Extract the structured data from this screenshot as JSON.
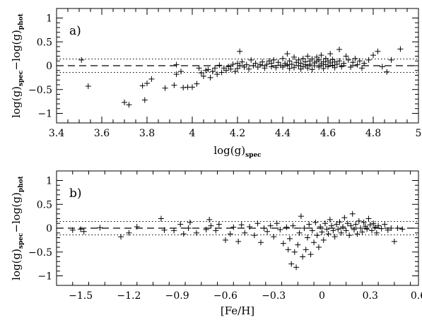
{
  "chart_data": [
    {
      "type": "scatter",
      "panel_label": "a)",
      "xlabel": "log(g)",
      "xlabel_sub": "spec",
      "ylabel_parts": [
        "log(g)",
        "spec",
        "−log(g)",
        "phot"
      ],
      "xlim": [
        3.4,
        5.0
      ],
      "ylim": [
        -1.2,
        1.2
      ],
      "xticks": [
        "3.4",
        "3.6",
        "3.8",
        "4",
        "4.2",
        "4.4",
        "4.6",
        "4.8",
        "5"
      ],
      "yticks": [
        "−1",
        "−0.5",
        "0",
        "0.5",
        "1"
      ],
      "reference_lines": {
        "zero": 0,
        "band": [
          -0.14,
          0.14
        ]
      },
      "points": [
        [
          3.51,
          0.12
        ],
        [
          3.54,
          -0.43
        ],
        [
          3.7,
          -0.77
        ],
        [
          3.72,
          -0.82
        ],
        [
          3.78,
          -0.42
        ],
        [
          3.79,
          -0.72
        ],
        [
          3.8,
          -0.37
        ],
        [
          3.82,
          -0.28
        ],
        [
          3.88,
          -0.47
        ],
        [
          3.92,
          -0.41
        ],
        [
          3.93,
          0.02
        ],
        [
          3.93,
          -0.18
        ],
        [
          3.95,
          -0.12
        ],
        [
          3.96,
          -0.46
        ],
        [
          3.98,
          -0.45
        ],
        [
          4.0,
          -0.45
        ],
        [
          4.02,
          -0.38
        ],
        [
          4.03,
          -0.05
        ],
        [
          4.04,
          -0.15
        ],
        [
          4.05,
          -0.22
        ],
        [
          4.06,
          -0.1
        ],
        [
          4.07,
          -0.08
        ],
        [
          4.08,
          -0.25
        ],
        [
          4.09,
          -0.12
        ],
        [
          4.1,
          -0.05
        ],
        [
          4.11,
          -0.18
        ],
        [
          4.12,
          0.01
        ],
        [
          4.13,
          -0.14
        ],
        [
          4.14,
          -0.05
        ],
        [
          4.15,
          -0.1
        ],
        [
          4.16,
          -0.02
        ],
        [
          4.17,
          -0.07
        ],
        [
          4.18,
          0.03
        ],
        [
          4.19,
          -0.12
        ],
        [
          4.2,
          0.05
        ],
        [
          4.2,
          -0.06
        ],
        [
          4.21,
          0.0
        ],
        [
          4.21,
          0.3
        ],
        [
          4.22,
          0.08
        ],
        [
          4.23,
          -0.03
        ],
        [
          4.24,
          0.02
        ],
        [
          4.25,
          -0.07
        ],
        [
          4.26,
          0.12
        ],
        [
          4.27,
          0.0
        ],
        [
          4.28,
          0.05
        ],
        [
          4.29,
          -0.03
        ],
        [
          4.3,
          0.02
        ],
        [
          4.31,
          0.08
        ],
        [
          4.32,
          -0.05
        ],
        [
          4.33,
          0.03
        ],
        [
          4.34,
          0.1
        ],
        [
          4.35,
          -0.02
        ],
        [
          4.35,
          0.05
        ],
        [
          4.36,
          0.12
        ],
        [
          4.37,
          -0.04
        ],
        [
          4.38,
          0.07
        ],
        [
          4.39,
          0.01
        ],
        [
          4.4,
          0.15
        ],
        [
          4.4,
          -0.03
        ],
        [
          4.41,
          0.05
        ],
        [
          4.42,
          0.25
        ],
        [
          4.42,
          0.02
        ],
        [
          4.43,
          -0.06
        ],
        [
          4.43,
          0.1
        ],
        [
          4.44,
          0.03
        ],
        [
          4.45,
          0.18
        ],
        [
          4.45,
          -0.04
        ],
        [
          4.46,
          0.07
        ],
        [
          4.47,
          0.0
        ],
        [
          4.47,
          0.12
        ],
        [
          4.48,
          -0.07
        ],
        [
          4.48,
          0.05
        ],
        [
          4.49,
          0.15
        ],
        [
          4.49,
          -0.02
        ],
        [
          4.5,
          0.08
        ],
        [
          4.5,
          0.02
        ],
        [
          4.51,
          0.2
        ],
        [
          4.51,
          -0.05
        ],
        [
          4.52,
          0.1
        ],
        [
          4.52,
          0.03
        ],
        [
          4.53,
          0.14
        ],
        [
          4.53,
          -0.08
        ],
        [
          4.54,
          0.06
        ],
        [
          4.54,
          0.0
        ],
        [
          4.55,
          0.18
        ],
        [
          4.55,
          0.09
        ],
        [
          4.56,
          -0.03
        ],
        [
          4.56,
          0.12
        ],
        [
          4.57,
          0.04
        ],
        [
          4.57,
          0.22
        ],
        [
          4.58,
          -0.06
        ],
        [
          4.58,
          0.08
        ],
        [
          4.59,
          0.02
        ],
        [
          4.59,
          0.15
        ],
        [
          4.6,
          0.1
        ],
        [
          4.6,
          -0.02
        ],
        [
          4.61,
          0.06
        ],
        [
          4.61,
          0.25
        ],
        [
          4.62,
          0.01
        ],
        [
          4.62,
          0.13
        ],
        [
          4.63,
          -0.04
        ],
        [
          4.63,
          0.08
        ],
        [
          4.64,
          0.03
        ],
        [
          4.65,
          0.34
        ],
        [
          4.65,
          0.1
        ],
        [
          4.66,
          -0.02
        ],
        [
          4.67,
          0.05
        ],
        [
          4.68,
          0.2
        ],
        [
          4.69,
          0.12
        ],
        [
          4.7,
          -0.03
        ],
        [
          4.71,
          0.07
        ],
        [
          4.72,
          0.15
        ],
        [
          4.73,
          0.02
        ],
        [
          4.74,
          0.1
        ],
        [
          4.75,
          -0.05
        ],
        [
          4.76,
          0.05
        ],
        [
          4.78,
          0.12
        ],
        [
          4.8,
          0.22
        ],
        [
          4.82,
          0.3
        ],
        [
          4.84,
          -0.02
        ],
        [
          4.86,
          -0.13
        ],
        [
          4.88,
          0.12
        ],
        [
          4.92,
          0.35
        ]
      ]
    },
    {
      "type": "scatter",
      "panel_label": "b)",
      "xlabel": "[Fe/H]",
      "ylabel_parts": [
        "log(g)",
        "spec",
        "−log(g)",
        "phot"
      ],
      "xlim": [
        -1.65,
        0.6
      ],
      "ylim": [
        -1.2,
        1.2
      ],
      "xticks": [
        "−1.5",
        "−1.2",
        "−0.9",
        "−0.6",
        "−0.3",
        "0",
        "0.3",
        "0.6"
      ],
      "xtick_values": [
        -1.5,
        -1.2,
        -0.9,
        -0.6,
        -0.3,
        0,
        0.3,
        0.6
      ],
      "yticks": [
        "−1",
        "−0.5",
        "0",
        "0.5",
        "1"
      ],
      "reference_lines": {
        "zero": 0,
        "band": [
          -0.14,
          0.14
        ]
      },
      "points": [
        [
          -1.55,
          -0.04
        ],
        [
          -1.5,
          -0.02
        ],
        [
          -1.48,
          -0.07
        ],
        [
          -1.38,
          0.01
        ],
        [
          -1.25,
          -0.18
        ],
        [
          -1.2,
          -0.1
        ],
        [
          -1.15,
          0.03
        ],
        [
          -1.0,
          0.2
        ],
        [
          -0.98,
          -0.04
        ],
        [
          -0.92,
          -0.05
        ],
        [
          -0.88,
          0.08
        ],
        [
          -0.86,
          -0.12
        ],
        [
          -0.83,
          0.0
        ],
        [
          -0.82,
          0.12
        ],
        [
          -0.78,
          -0.1
        ],
        [
          -0.72,
          -0.03
        ],
        [
          -0.7,
          0.18
        ],
        [
          -0.69,
          0.05
        ],
        [
          -0.66,
          -0.05
        ],
        [
          -0.64,
          0.08
        ],
        [
          -0.6,
          -0.25
        ],
        [
          -0.57,
          -0.12
        ],
        [
          -0.55,
          0.02
        ],
        [
          -0.52,
          -0.28
        ],
        [
          -0.5,
          0.07
        ],
        [
          -0.48,
          -0.1
        ],
        [
          -0.45,
          0.03
        ],
        [
          -0.42,
          -0.15
        ],
        [
          -0.4,
          0.1
        ],
        [
          -0.38,
          -0.3
        ],
        [
          -0.36,
          0.0
        ],
        [
          -0.34,
          -0.07
        ],
        [
          -0.32,
          0.05
        ],
        [
          -0.3,
          -0.18
        ],
        [
          -0.28,
          0.1
        ],
        [
          -0.26,
          -0.03
        ],
        [
          -0.24,
          -0.32
        ],
        [
          -0.22,
          0.02
        ],
        [
          -0.21,
          -0.45
        ],
        [
          -0.2,
          -0.22
        ],
        [
          -0.19,
          -0.75
        ],
        [
          -0.18,
          0.05
        ],
        [
          -0.17,
          -0.5
        ],
        [
          -0.16,
          -0.82
        ],
        [
          -0.15,
          -0.35
        ],
        [
          -0.14,
          -0.1
        ],
        [
          -0.13,
          0.25
        ],
        [
          -0.12,
          -0.6
        ],
        [
          -0.11,
          0.0
        ],
        [
          -0.1,
          -0.45
        ],
        [
          -0.09,
          -0.2
        ],
        [
          -0.08,
          0.08
        ],
        [
          -0.07,
          -0.55
        ],
        [
          -0.06,
          -0.05
        ],
        [
          -0.05,
          -0.3
        ],
        [
          -0.04,
          0.12
        ],
        [
          -0.03,
          -0.15
        ],
        [
          -0.02,
          -0.4
        ],
        [
          -0.01,
          0.03
        ],
        [
          0.0,
          -0.08
        ],
        [
          0.01,
          -0.25
        ],
        [
          0.02,
          0.1
        ],
        [
          0.03,
          -0.02
        ],
        [
          0.04,
          -0.12
        ],
        [
          0.05,
          0.18
        ],
        [
          0.06,
          0.05
        ],
        [
          0.07,
          -0.05
        ],
        [
          0.08,
          -0.18
        ],
        [
          0.09,
          0.08
        ],
        [
          0.1,
          -0.02
        ],
        [
          0.11,
          0.13
        ],
        [
          0.12,
          -0.1
        ],
        [
          0.13,
          0.03
        ],
        [
          0.14,
          0.22
        ],
        [
          0.15,
          -0.05
        ],
        [
          0.16,
          0.1
        ],
        [
          0.17,
          -0.15
        ],
        [
          0.18,
          0.05
        ],
        [
          0.19,
          0.3
        ],
        [
          0.2,
          -0.03
        ],
        [
          0.21,
          0.08
        ],
        [
          0.22,
          -0.12
        ],
        [
          0.23,
          0.15
        ],
        [
          0.24,
          0.0
        ],
        [
          0.25,
          -0.08
        ],
        [
          0.26,
          0.12
        ],
        [
          0.27,
          0.04
        ],
        [
          0.28,
          -0.02
        ],
        [
          0.29,
          0.2
        ],
        [
          0.3,
          0.07
        ],
        [
          0.31,
          -0.05
        ],
        [
          0.32,
          0.1
        ],
        [
          0.33,
          0.02
        ],
        [
          0.34,
          -0.1
        ],
        [
          0.35,
          0.05
        ],
        [
          0.37,
          -0.01
        ],
        [
          0.39,
          0.08
        ],
        [
          0.41,
          -0.04
        ],
        [
          0.43,
          0.0
        ],
        [
          0.45,
          -0.28
        ],
        [
          0.47,
          0.0
        ],
        [
          0.5,
          -0.02
        ]
      ]
    }
  ]
}
